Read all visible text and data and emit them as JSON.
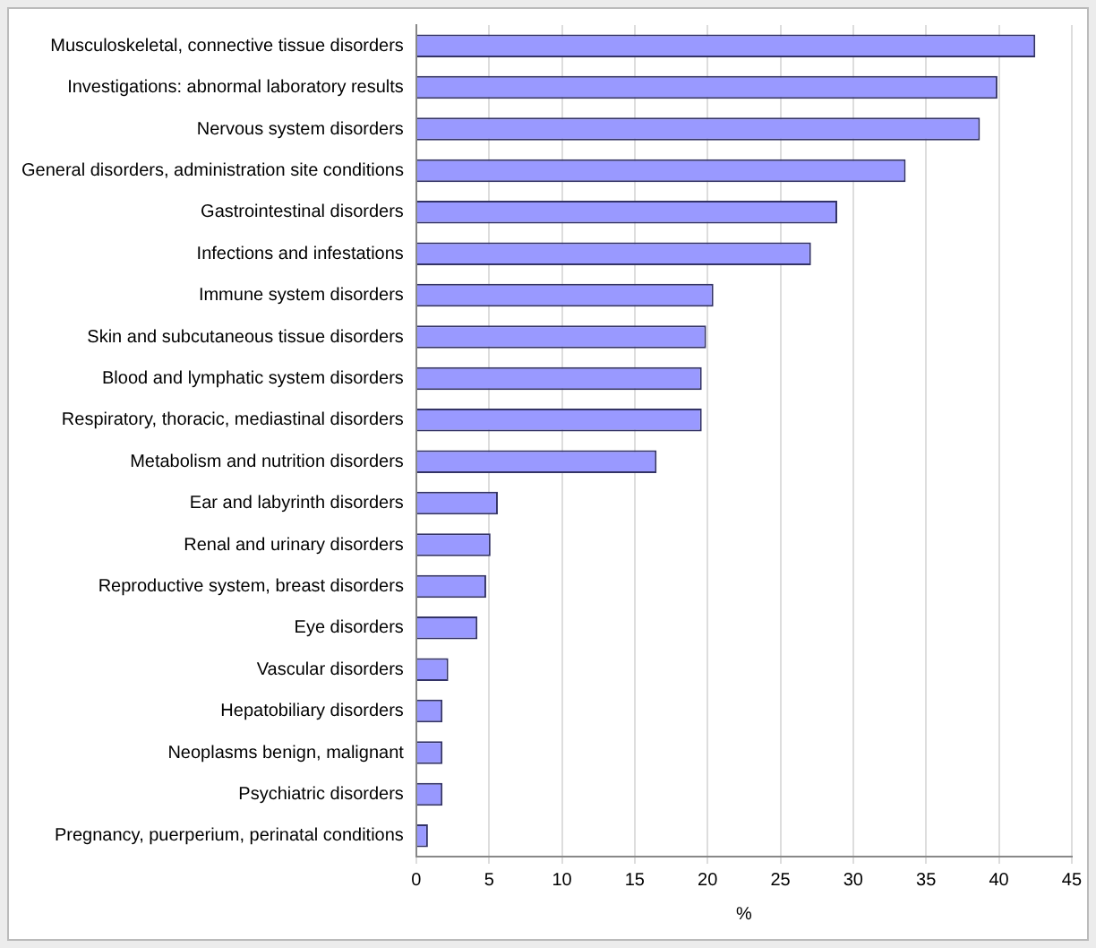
{
  "chart_data": {
    "type": "bar",
    "orientation": "horizontal",
    "xlabel": "%",
    "categories": [
      "Musculoskeletal, connective tissue disorders",
      "Investigations: abnormal laboratory results",
      "Nervous system disorders",
      "General disorders, administration site conditions",
      "Gastrointestinal disorders",
      "Infections and infestations",
      "Immune system disorders",
      "Skin and subcutaneous tissue disorders",
      "Blood and lymphatic system disorders",
      "Respiratory, thoracic, mediastinal disorders",
      "Metabolism and nutrition disorders",
      "Ear and labyrinth disorders",
      "Renal and urinary disorders",
      "Reproductive system, breast disorders",
      "Eye disorders",
      "Vascular disorders",
      "Hepatobiliary disorders",
      "Neoplasms benign, malignant",
      "Psychiatric disorders",
      "Pregnancy, puerperium, perinatal conditions"
    ],
    "values": [
      42.5,
      39.9,
      38.7,
      33.6,
      28.9,
      27.1,
      20.4,
      19.9,
      19.6,
      19.6,
      16.5,
      5.6,
      5.1,
      4.8,
      4.2,
      2.2,
      1.8,
      1.8,
      1.8,
      0.8
    ],
    "color": "#9999ff",
    "xlim": [
      0,
      45
    ],
    "xticks": [
      0,
      5,
      10,
      15,
      20,
      25,
      30,
      35,
      40,
      45
    ],
    "grid": "x",
    "legend": false
  }
}
